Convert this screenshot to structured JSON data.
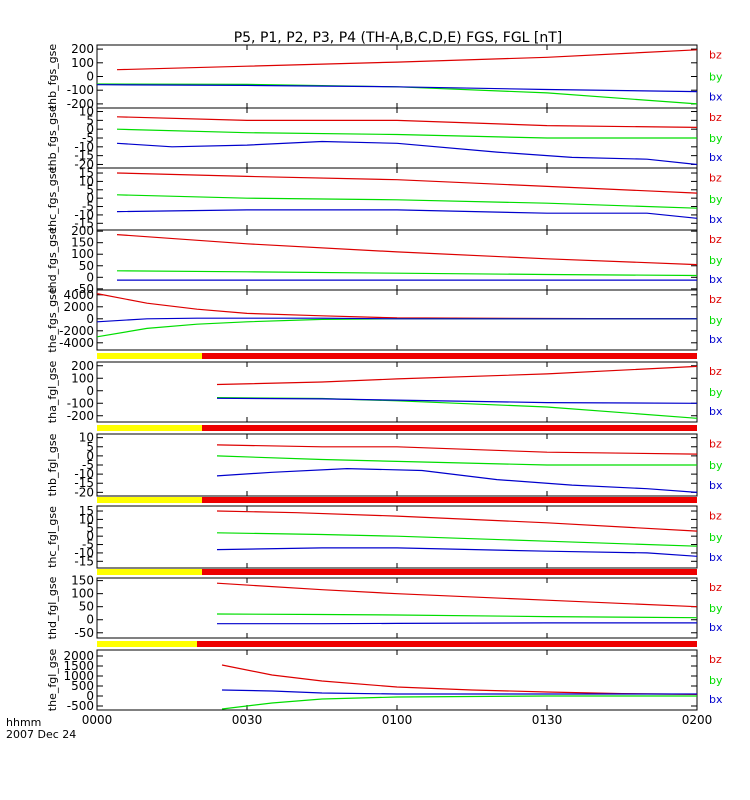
{
  "title": "P5, P1, P2, P3, P4 (TH-A,B,C,D,E) FGS, FGL [nT]",
  "time_axis": {
    "label": "hhmm",
    "date": "2007 Dec 24",
    "ticks": [
      "0000",
      "0030",
      "0100",
      "0130",
      "0200"
    ],
    "tick_minutes": [
      0,
      30,
      60,
      90,
      120
    ],
    "range_minutes": [
      0,
      120
    ]
  },
  "colors": {
    "bx": "#0000cc",
    "by": "#00dd00",
    "bz": "#dd0000",
    "bar_yellow": "#ffff00",
    "bar_red": "#ee0000",
    "axis": "#000000"
  },
  "chart_data": [
    {
      "type": "line",
      "ylabel": "thb_fgs_gse",
      "ylim": [
        -230,
        230
      ],
      "yticks": [
        200,
        100,
        0,
        -100,
        -200
      ],
      "series": [
        {
          "name": "bz",
          "x": [
            4,
            30,
            60,
            90,
            120
          ],
          "values": [
            50,
            75,
            105,
            140,
            195
          ]
        },
        {
          "name": "by",
          "x": [
            0,
            30,
            60,
            90,
            120
          ],
          "values": [
            -55,
            -58,
            -75,
            -120,
            -200
          ]
        },
        {
          "name": "bx",
          "x": [
            0,
            30,
            60,
            90,
            120
          ],
          "values": [
            -60,
            -65,
            -75,
            -95,
            -110
          ]
        }
      ]
    },
    {
      "type": "line",
      "ylabel": "thb_fgs_gse",
      "ylim": [
        -22,
        12
      ],
      "yticks": [
        10,
        5,
        0,
        -5,
        -10,
        -15,
        -20
      ],
      "series": [
        {
          "name": "bz",
          "x": [
            4,
            30,
            60,
            90,
            120
          ],
          "values": [
            7,
            5,
            5,
            2,
            1
          ]
        },
        {
          "name": "by",
          "x": [
            4,
            30,
            60,
            90,
            120
          ],
          "values": [
            0,
            -2,
            -3,
            -5,
            -5
          ]
        },
        {
          "name": "bx",
          "x": [
            4,
            15,
            30,
            45,
            60,
            80,
            95,
            110,
            120
          ],
          "values": [
            -8,
            -10,
            -9,
            -7,
            -8,
            -13,
            -16,
            -17,
            -20
          ]
        }
      ]
    },
    {
      "type": "line",
      "ylabel": "thc_fgs_gse",
      "ylim": [
        -19,
        18
      ],
      "yticks": [
        15,
        10,
        5,
        0,
        -5,
        -10,
        -15
      ],
      "series": [
        {
          "name": "bz",
          "x": [
            4,
            30,
            60,
            90,
            120
          ],
          "values": [
            15,
            13,
            11,
            7,
            3
          ]
        },
        {
          "name": "by",
          "x": [
            4,
            30,
            60,
            90,
            120
          ],
          "values": [
            2,
            0,
            -1,
            -3,
            -6
          ]
        },
        {
          "name": "bx",
          "x": [
            4,
            30,
            60,
            90,
            110,
            120
          ],
          "values": [
            -8,
            -7,
            -7,
            -9,
            -9,
            -12
          ]
        }
      ]
    },
    {
      "type": "line",
      "ylabel": "thd_fgs_gse",
      "ylim": [
        -55,
        205
      ],
      "yticks": [
        200,
        150,
        100,
        50,
        0,
        -50
      ],
      "series": [
        {
          "name": "bz",
          "x": [
            4,
            30,
            60,
            90,
            120
          ],
          "values": [
            185,
            145,
            110,
            80,
            55
          ]
        },
        {
          "name": "by",
          "x": [
            4,
            30,
            60,
            90,
            120
          ],
          "values": [
            28,
            24,
            18,
            12,
            8
          ]
        },
        {
          "name": "bx",
          "x": [
            4,
            30,
            60,
            90,
            120
          ],
          "values": [
            -12,
            -12,
            -12,
            -12,
            -12
          ]
        }
      ]
    },
    {
      "type": "line",
      "ylabel": "the_fgs_gse",
      "ylim": [
        -5200,
        4800
      ],
      "yticks": [
        4000,
        2000,
        0,
        -2000,
        -4000
      ],
      "series": [
        {
          "name": "bz",
          "x": [
            0,
            10,
            20,
            30,
            45,
            60,
            90,
            120
          ],
          "values": [
            4200,
            2600,
            1600,
            900,
            500,
            150,
            50,
            0
          ]
        },
        {
          "name": "by",
          "x": [
            0,
            10,
            20,
            30,
            45,
            60,
            90,
            120
          ],
          "values": [
            -3000,
            -1600,
            -900,
            -500,
            -100,
            0,
            0,
            0
          ]
        },
        {
          "name": "bx",
          "x": [
            0,
            10,
            20,
            30,
            45,
            60,
            90,
            120
          ],
          "values": [
            -500,
            0,
            100,
            100,
            100,
            0,
            0,
            0
          ]
        }
      ],
      "bar": {
        "yellow_until": 21
      }
    },
    {
      "type": "line",
      "ylabel": "tha_fgl_gse",
      "ylim": [
        -250,
        230
      ],
      "yticks": [
        200,
        100,
        0,
        -100,
        -200
      ],
      "series": [
        {
          "name": "bz",
          "x": [
            24,
            45,
            60,
            90,
            120
          ],
          "values": [
            50,
            70,
            95,
            135,
            195
          ]
        },
        {
          "name": "by",
          "x": [
            24,
            45,
            60,
            90,
            120
          ],
          "values": [
            -55,
            -62,
            -80,
            -130,
            -220
          ]
        },
        {
          "name": "bx",
          "x": [
            24,
            45,
            60,
            90,
            120
          ],
          "values": [
            -60,
            -65,
            -75,
            -95,
            -100
          ]
        }
      ],
      "bar": {
        "yellow_until": 21
      }
    },
    {
      "type": "line",
      "ylabel": "thb_fgl_gse",
      "ylim": [
        -22,
        12
      ],
      "yticks": [
        10,
        5,
        0,
        -5,
        -10,
        -15,
        -20
      ],
      "series": [
        {
          "name": "bz",
          "x": [
            24,
            45,
            60,
            90,
            120
          ],
          "values": [
            6,
            5,
            5,
            2,
            1
          ]
        },
        {
          "name": "by",
          "x": [
            24,
            45,
            60,
            90,
            120
          ],
          "values": [
            0,
            -2,
            -3,
            -5,
            -5
          ]
        },
        {
          "name": "bx",
          "x": [
            24,
            35,
            50,
            65,
            80,
            95,
            110,
            120
          ],
          "values": [
            -11,
            -9,
            -7,
            -8,
            -13,
            -16,
            -18,
            -20
          ]
        }
      ],
      "bar": {
        "yellow_until": 21
      }
    },
    {
      "type": "line",
      "ylabel": "thc_fgl_gse",
      "ylim": [
        -19,
        18
      ],
      "yticks": [
        15,
        10,
        5,
        0,
        -5,
        -10,
        -15
      ],
      "series": [
        {
          "name": "bz",
          "x": [
            24,
            40,
            60,
            90,
            120
          ],
          "values": [
            15,
            14,
            12,
            8,
            3
          ]
        },
        {
          "name": "by",
          "x": [
            24,
            45,
            60,
            90,
            120
          ],
          "values": [
            2,
            1,
            0,
            -3,
            -6
          ]
        },
        {
          "name": "bx",
          "x": [
            24,
            45,
            60,
            90,
            110,
            120
          ],
          "values": [
            -8,
            -7,
            -7,
            -9,
            -10,
            -12
          ]
        }
      ],
      "bar": {
        "yellow_until": 21
      }
    },
    {
      "type": "line",
      "ylabel": "thd_fgl_gse",
      "ylim": [
        -70,
        160
      ],
      "yticks": [
        150,
        100,
        50,
        0,
        -50
      ],
      "series": [
        {
          "name": "bz",
          "x": [
            24,
            45,
            60,
            90,
            120
          ],
          "values": [
            140,
            115,
            100,
            75,
            50
          ]
        },
        {
          "name": "by",
          "x": [
            24,
            45,
            60,
            90,
            120
          ],
          "values": [
            22,
            20,
            18,
            12,
            8
          ]
        },
        {
          "name": "bx",
          "x": [
            24,
            45,
            60,
            90,
            120
          ],
          "values": [
            -15,
            -15,
            -14,
            -12,
            -12
          ]
        }
      ],
      "bar": {
        "yellow_until": 20
      }
    },
    {
      "type": "line",
      "ylabel": "the_fgl_gse",
      "ylim": [
        -700,
        2300
      ],
      "yticks": [
        2000,
        1500,
        1000,
        500,
        0,
        -500
      ],
      "series": [
        {
          "name": "bz",
          "x": [
            25,
            35,
            45,
            60,
            75,
            90,
            105,
            120
          ],
          "values": [
            1550,
            1050,
            750,
            450,
            300,
            200,
            120,
            80
          ]
        },
        {
          "name": "by",
          "x": [
            25,
            35,
            45,
            60,
            90,
            120
          ],
          "values": [
            -650,
            -350,
            -150,
            -50,
            0,
            0
          ]
        },
        {
          "name": "bx",
          "x": [
            25,
            35,
            45,
            60,
            90,
            120
          ],
          "values": [
            300,
            250,
            150,
            100,
            100,
            100
          ]
        }
      ]
    }
  ]
}
